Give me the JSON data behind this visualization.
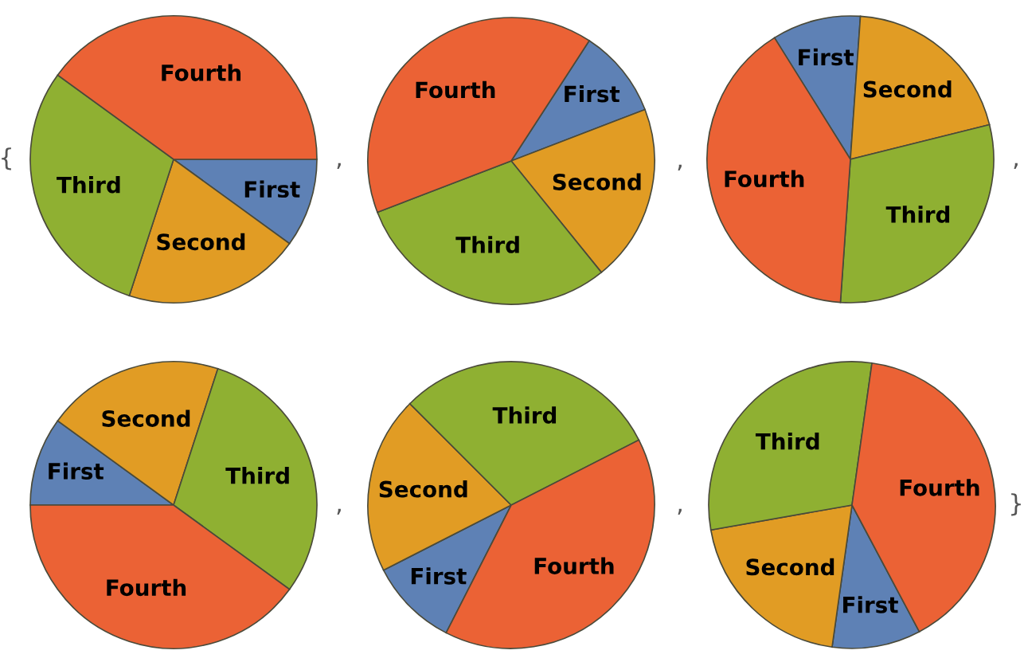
{
  "chart_data": [
    {
      "type": "pie",
      "categories": [
        "First",
        "Second",
        "Third",
        "Fourth"
      ],
      "values": [
        10,
        20,
        30,
        40
      ],
      "colors": [
        "#5e81b5",
        "#e19c24",
        "#8fb032",
        "#eb6235"
      ],
      "annotations": [
        "{",
        ","
      ]
    },
    {
      "type": "pie",
      "categories": [
        "First",
        "Second",
        "Third",
        "Fourth"
      ],
      "values": [
        10,
        20,
        30,
        40
      ],
      "colors": [
        "#5e81b5",
        "#e19c24",
        "#8fb032",
        "#eb6235"
      ],
      "annotations": [
        ","
      ]
    },
    {
      "type": "pie",
      "categories": [
        "First",
        "Second",
        "Third",
        "Fourth"
      ],
      "values": [
        10,
        20,
        30,
        40
      ],
      "colors": [
        "#5e81b5",
        "#e19c24",
        "#8fb032",
        "#eb6235"
      ],
      "annotations": [
        ","
      ]
    },
    {
      "type": "pie",
      "categories": [
        "First",
        "Second",
        "Third",
        "Fourth"
      ],
      "values": [
        10,
        20,
        30,
        40
      ],
      "colors": [
        "#5e81b5",
        "#e19c24",
        "#8fb032",
        "#eb6235"
      ],
      "annotations": [
        ","
      ]
    },
    {
      "type": "pie",
      "categories": [
        "First",
        "Second",
        "Third",
        "Fourth"
      ],
      "values": [
        10,
        20,
        30,
        40
      ],
      "colors": [
        "#5e81b5",
        "#e19c24",
        "#8fb032",
        "#eb6235"
      ],
      "annotations": [
        ","
      ]
    },
    {
      "type": "pie",
      "categories": [
        "First",
        "Second",
        "Third",
        "Fourth"
      ],
      "values": [
        10,
        20,
        30,
        40
      ],
      "colors": [
        "#5e81b5",
        "#e19c24",
        "#8fb032",
        "#eb6235"
      ],
      "annotations": [
        "}"
      ]
    }
  ]
}
